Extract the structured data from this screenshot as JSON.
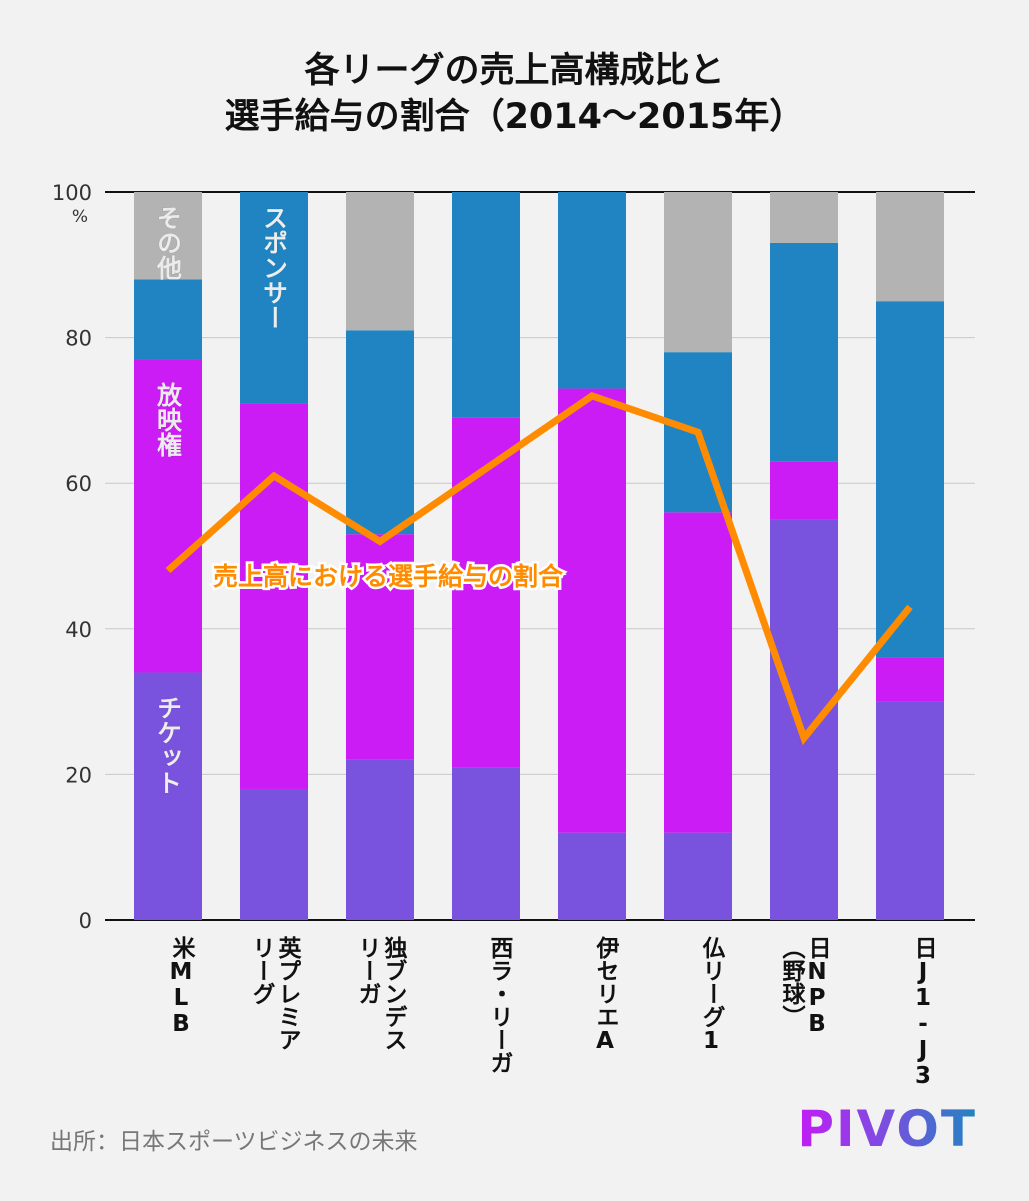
{
  "title": [
    "各リーグの売上高構成比と",
    "選手給与の割合（2014〜2015年）"
  ],
  "source": "出所：日本スポーツビジネスの未来",
  "logo": "PIVOT",
  "chart_data": {
    "type": "bar",
    "stacked": true,
    "categories": [
      "米MLB",
      "英プレミア\nリーグ",
      "独ブンデス\nリーガ",
      "西ラ・リーガ",
      "伊セリエA",
      "仏リーグ1",
      "日NPB\n（野球）",
      "日J1-J3"
    ],
    "series": [
      {
        "name": "チケット",
        "color": "#7952dd",
        "values": [
          34,
          18,
          22,
          21,
          12,
          12,
          55,
          30
        ]
      },
      {
        "name": "放映権",
        "color": "#cc1cf5",
        "values": [
          43,
          53,
          31,
          48,
          61,
          44,
          8,
          6
        ]
      },
      {
        "name": "スポンサー",
        "color": "#1f84c1",
        "values": [
          11,
          29,
          28,
          31,
          27,
          22,
          30,
          49
        ]
      },
      {
        "name": "その他",
        "color": "#b3b3b3",
        "values": [
          12,
          0,
          19,
          0,
          0,
          22,
          7,
          15
        ]
      }
    ],
    "line": {
      "name": "売上高における選手給与の割合",
      "color": "#ff8c00",
      "values": [
        48,
        61,
        52,
        62,
        72,
        67,
        25,
        43
      ]
    },
    "ylim": [
      0,
      100
    ],
    "yticks": [
      0,
      20,
      40,
      60,
      80,
      100
    ],
    "yunit": "%",
    "grid": true
  }
}
